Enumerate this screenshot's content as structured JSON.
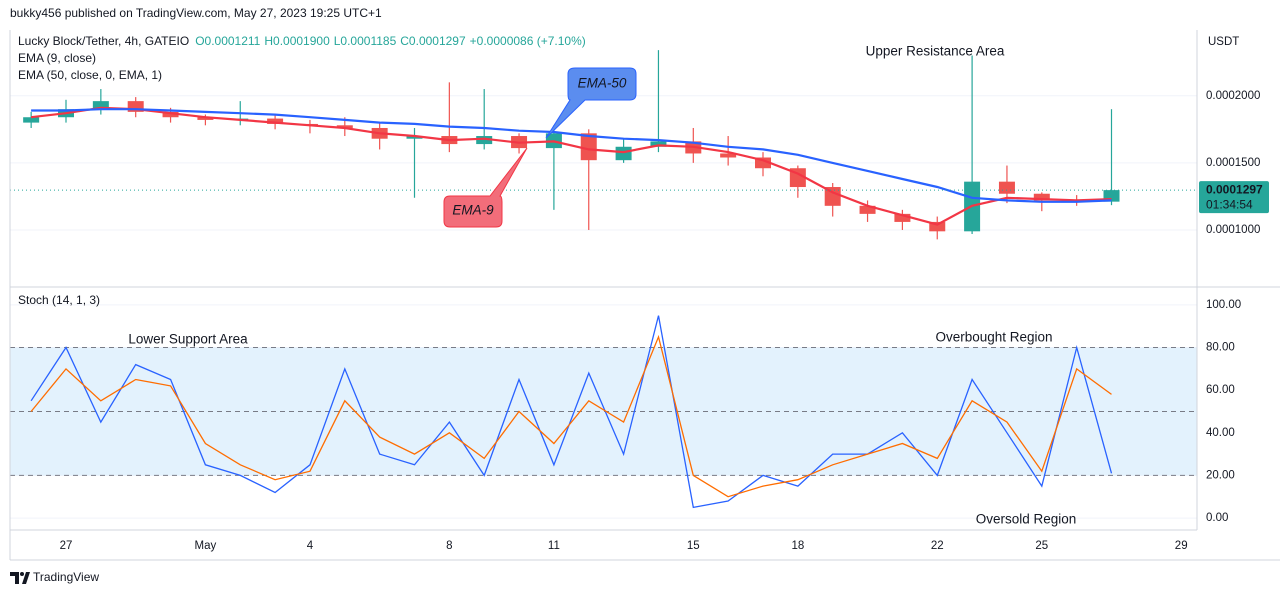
{
  "header": {
    "byline": "bukky456 published on TradingView.com, May 27, 2023 19:25 UTC+1"
  },
  "footer": {
    "brand": "TradingView"
  },
  "chart_data": [
    {
      "type": "candlestick",
      "title": "Lucky Block/Tether, 4h, GATEIO",
      "ohlc_legend": [
        "O0.0001211",
        "H0.0001900",
        "L0.0001185",
        "C0.0001297",
        "+0.0000086 (+7.10%)"
      ],
      "y_unit": "USDT",
      "up_color": "#26a69a",
      "down_color": "#ef5350",
      "open": [
        0.00018,
        0.000184,
        0.00019,
        0.000196,
        0.000188,
        0.000184,
        0.000182,
        0.000183,
        0.000179,
        0.000178,
        0.000176,
        0.000168,
        0.00017,
        0.000164,
        0.00017,
        0.000161,
        0.000172,
        0.000152,
        0.000162,
        0.000166,
        0.000157,
        0.000154,
        0.000146,
        0.000132,
        0.000118,
        0.000112,
        0.000106,
        9.9e-05,
        0.000136,
        0.000127,
        0.000122,
        0.0001211,
        null,
        null
      ],
      "high": [
        0.000188,
        0.000197,
        0.000205,
        0.000199,
        0.000191,
        0.000186,
        0.000196,
        0.000186,
        0.000182,
        0.000184,
        0.00018,
        0.000176,
        0.00021,
        0.000205,
        0.000172,
        0.000178,
        0.000175,
        0.000168,
        0.000234,
        0.000176,
        0.00017,
        0.000158,
        0.000148,
        0.000135,
        0.000122,
        0.000115,
        0.00011,
        0.00023,
        0.000148,
        0.000128,
        0.000126,
        0.00019,
        null,
        null
      ],
      "low": [
        0.000176,
        0.00018,
        0.000186,
        0.000184,
        0.00018,
        0.000178,
        0.000178,
        0.000175,
        0.000172,
        0.00017,
        0.00016,
        0.000124,
        0.000158,
        0.00016,
        0.000157,
        0.000115,
        0.0001,
        0.00015,
        0.000158,
        0.00015,
        0.000148,
        0.00014,
        0.000124,
        0.00011,
        0.000106,
        0.0001,
        9.3e-05,
        9.7e-05,
        0.00012,
        0.000114,
        0.000118,
        0.0001185,
        null,
        null
      ],
      "close": [
        0.000184,
        0.00019,
        0.000196,
        0.000188,
        0.000184,
        0.000182,
        0.000183,
        0.000179,
        0.000178,
        0.000176,
        0.000168,
        0.00017,
        0.000164,
        0.00017,
        0.000161,
        0.000172,
        0.000152,
        0.000162,
        0.000166,
        0.000157,
        0.000154,
        0.000146,
        0.000132,
        0.000118,
        0.000112,
        0.000106,
        9.9e-05,
        0.000136,
        0.000127,
        0.000122,
        0.0001211,
        0.0001297,
        null,
        null
      ],
      "series": [
        {
          "name": "EMA (9, close)",
          "color": "#f23645",
          "values": [
            0.000184,
            0.000187,
            0.000191,
            0.00019,
            0.000187,
            0.000184,
            0.000182,
            0.00018,
            0.000178,
            0.000176,
            0.000172,
            0.00017,
            0.000167,
            0.000168,
            0.000165,
            0.000166,
            0.00016,
            0.000158,
            0.000163,
            0.000162,
            0.000158,
            0.000152,
            0.000142,
            0.000128,
            0.000118,
            0.000111,
            0.000104,
            0.000118,
            0.000124,
            0.000123,
            0.000122,
            0.000123,
            null,
            null
          ]
        },
        {
          "name": "EMA (50, close, 0, EMA, 1)",
          "color": "#2962ff",
          "values": [
            0.000189,
            0.000189,
            0.00019,
            0.00019,
            0.000189,
            0.000188,
            0.000187,
            0.000186,
            0.000184,
            0.000182,
            0.00018,
            0.000179,
            0.000177,
            0.000176,
            0.000174,
            0.000173,
            0.00017,
            0.000168,
            0.000167,
            0.000165,
            0.000162,
            0.00016,
            0.000156,
            0.00015,
            0.000144,
            0.000138,
            0.000132,
            0.000124,
            0.000122,
            0.000121,
            0.000121,
            0.000122,
            null,
            null
          ]
        }
      ],
      "ylim": [
        5.9e-05,
        0.000249
      ],
      "yticks": [
        {
          "value": 0.0001,
          "label": "0.0001000"
        },
        {
          "value": 0.00015,
          "label": "0.0001500"
        },
        {
          "value": 0.0002,
          "label": "0.0002000"
        }
      ],
      "grid": true,
      "last_price": 0.0001297,
      "countdown": "01:34:54",
      "annotations": [
        "Upper Resistance Area",
        "EMA-50",
        "EMA-9"
      ]
    },
    {
      "type": "line",
      "title": "Stoch (14, 1, 3)",
      "categories": [
        null,
        "27",
        null,
        null,
        null,
        "May",
        null,
        null,
        "4",
        null,
        null,
        null,
        "8",
        null,
        null,
        "11",
        null,
        null,
        null,
        "15",
        null,
        null,
        "18",
        null,
        null,
        null,
        "22",
        null,
        null,
        "25",
        null,
        null,
        null,
        "29"
      ],
      "series": [
        {
          "color": "#2962ff",
          "values": [
            55,
            80,
            45,
            72,
            65,
            25,
            20,
            12,
            25,
            70,
            30,
            25,
            45,
            20,
            65,
            25,
            68,
            30,
            95,
            5,
            8,
            20,
            15,
            30,
            30,
            40,
            20,
            65,
            40,
            15,
            80,
            21,
            null,
            null
          ]
        },
        {
          "color": "#ff6d00",
          "values": [
            50,
            70,
            55,
            65,
            62,
            35,
            25,
            18,
            22,
            55,
            38,
            30,
            40,
            28,
            50,
            35,
            55,
            45,
            85,
            20,
            10,
            15,
            18,
            25,
            30,
            35,
            28,
            55,
            45,
            22,
            70,
            58,
            null,
            null
          ]
        }
      ],
      "ylim": [
        -5.6,
        107
      ],
      "yticks": [
        {
          "value": 0,
          "label": "0.00"
        },
        {
          "value": 20,
          "label": "20.00"
        },
        {
          "value": 40,
          "label": "40.00"
        },
        {
          "value": 60,
          "label": "60.00"
        },
        {
          "value": 80,
          "label": "80.00"
        },
        {
          "value": 100,
          "label": "100.00"
        }
      ],
      "band": [
        20,
        80
      ],
      "band_color": "#e3f2fd",
      "levels": [
        20,
        50,
        80
      ],
      "grid": true,
      "annotations": [
        "Lower Support Area",
        "Overbought Region",
        "Oversold Region"
      ]
    }
  ]
}
